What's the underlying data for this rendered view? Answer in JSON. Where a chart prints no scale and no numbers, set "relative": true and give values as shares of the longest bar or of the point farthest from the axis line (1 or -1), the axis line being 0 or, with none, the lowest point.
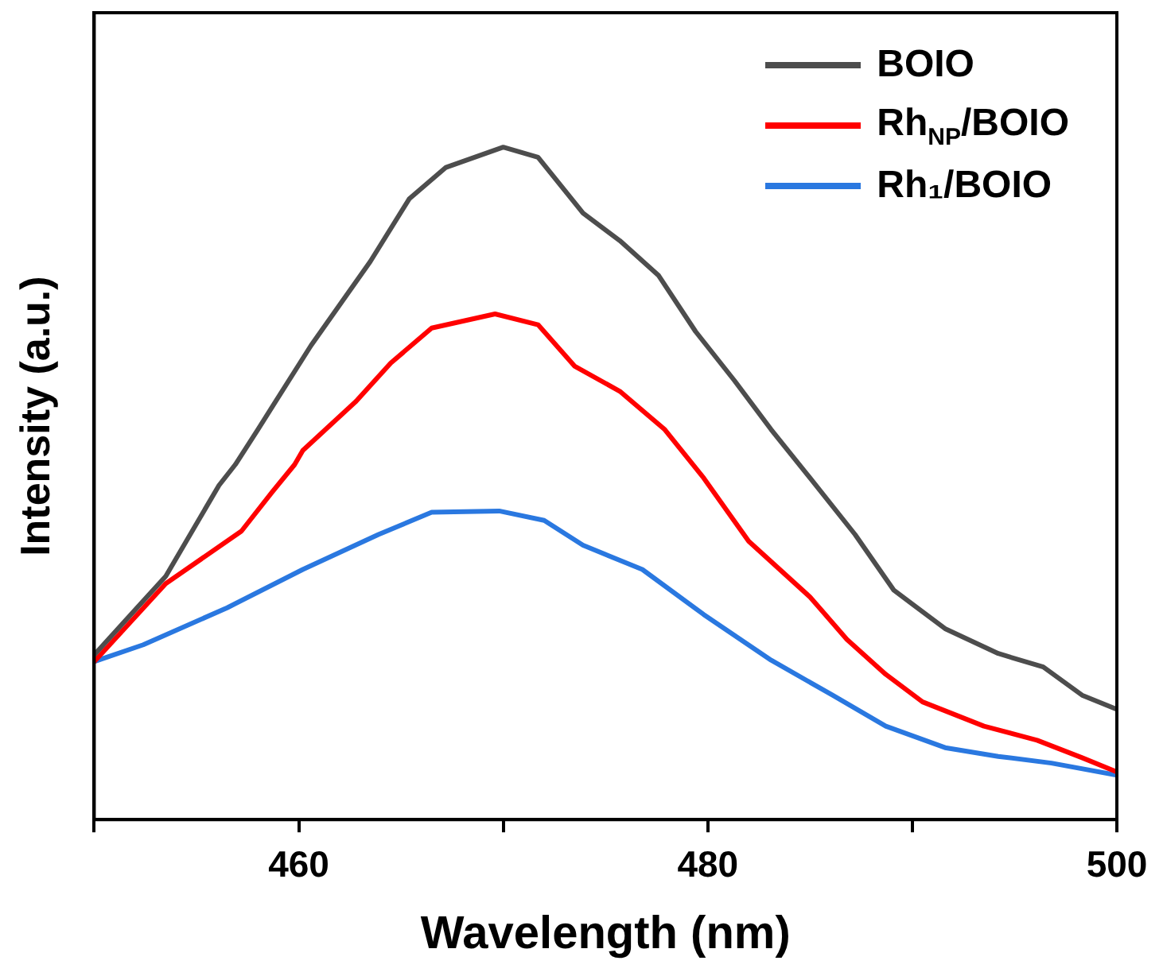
{
  "chart_data": {
    "type": "line",
    "xlabel": "Wavelength (nm)",
    "ylabel": "Intensity (a.u.)",
    "xlim": [
      450,
      500
    ],
    "xticks": [
      {
        "value": 450,
        "label": null
      },
      460,
      {
        "value": 470,
        "label": null
      },
      480,
      {
        "value": 490,
        "label": null
      },
      500
    ],
    "relative": true,
    "tick_labels": "x",
    "grid": false,
    "legend": "top right",
    "marker": "none",
    "line_style": "solid",
    "series": [
      {
        "name": "BOIO",
        "color": "#4d4d4d",
        "x": [
          450,
          453.5,
          456.1,
          456.9,
          458.0,
          460.6,
          463.5,
          465.4,
          467.2,
          470.0,
          471.7,
          473.9,
          475.7,
          477.6,
          479.4,
          481.3,
          483.1,
          485.0,
          487.2,
          489.1,
          491.6,
          494.2,
          496.4,
          498.3,
          500
        ],
        "values": [
          0.245,
          0.362,
          0.497,
          0.528,
          0.58,
          0.705,
          0.83,
          0.923,
          0.97,
          1.0,
          0.985,
          0.902,
          0.861,
          0.809,
          0.726,
          0.653,
          0.58,
          0.508,
          0.424,
          0.341,
          0.284,
          0.247,
          0.227,
          0.185,
          0.164
        ]
      },
      {
        "name": "Rh$_{NP}$/BOIO",
        "color": "#ff0000",
        "x": [
          450,
          453.5,
          457.2,
          458.7,
          459.8,
          460.2,
          462.8,
          464.5,
          466.5,
          469.6,
          471.7,
          473.5,
          475.7,
          477.9,
          479.8,
          482.0,
          485.0,
          486.8,
          488.7,
          490.5,
          493.5,
          496.1,
          498.3,
          500
        ],
        "values": [
          0.235,
          0.351,
          0.429,
          0.487,
          0.528,
          0.549,
          0.622,
          0.679,
          0.731,
          0.752,
          0.736,
          0.674,
          0.637,
          0.58,
          0.508,
          0.414,
          0.331,
          0.268,
          0.216,
          0.175,
          0.139,
          0.118,
          0.092,
          0.071
        ]
      },
      {
        "name": "Rh₁/BOIO",
        "color": "#2a78e0",
        "x": [
          450,
          452.4,
          456.5,
          460.2,
          463.9,
          466.5,
          469.8,
          472.0,
          473.9,
          476.8,
          479.8,
          483.1,
          486.1,
          488.7,
          491.6,
          494.2,
          496.8,
          500
        ],
        "values": [
          0.235,
          0.26,
          0.315,
          0.372,
          0.424,
          0.457,
          0.459,
          0.445,
          0.408,
          0.372,
          0.305,
          0.237,
          0.185,
          0.139,
          0.107,
          0.094,
          0.084,
          0.066
        ]
      }
    ]
  }
}
